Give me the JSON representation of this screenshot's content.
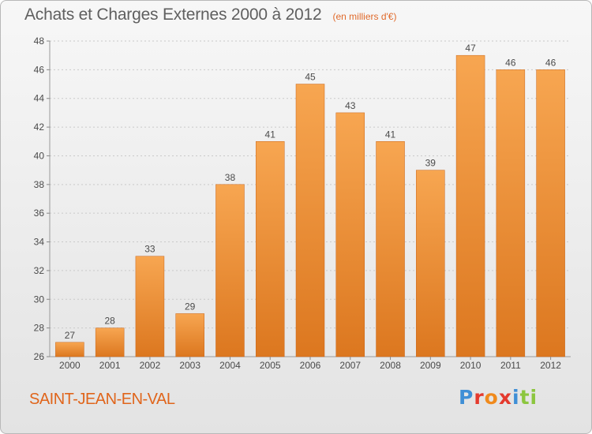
{
  "header": {
    "title": "Achats et Charges Externes 2000 à 2012",
    "unit": "(en milliers d'€)"
  },
  "footer": {
    "place": "SAINT-JEAN-EN-VAL",
    "logo_text": "Proxiti"
  },
  "colors": {
    "bar_top": "#f7a651",
    "bar_bottom": "#dc771f",
    "bar_edge": "#c8651a",
    "place_text": "#e0651b",
    "unit_text": "#e06a2b",
    "logo_letters": [
      "#3f8fd6",
      "#e43a2e",
      "#f08a1c",
      "#e43a2e",
      "#3f8fd6",
      "#8cc63f",
      "#8cc63f"
    ]
  },
  "chart_data": {
    "type": "bar",
    "title": "Achats et Charges Externes 2000 à 2012",
    "unit": "(en milliers d'€)",
    "categories": [
      "2000",
      "2001",
      "2002",
      "2003",
      "2004",
      "2005",
      "2006",
      "2007",
      "2008",
      "2009",
      "2010",
      "2011",
      "2012"
    ],
    "values": [
      27,
      28,
      33,
      29,
      38,
      41,
      45,
      43,
      41,
      39,
      47,
      46,
      46
    ],
    "ylim": [
      26,
      48
    ],
    "yticks": [
      26,
      28,
      30,
      32,
      34,
      36,
      38,
      40,
      42,
      44,
      46,
      48
    ],
    "grid": true,
    "data_labels": true,
    "legend": "none"
  }
}
